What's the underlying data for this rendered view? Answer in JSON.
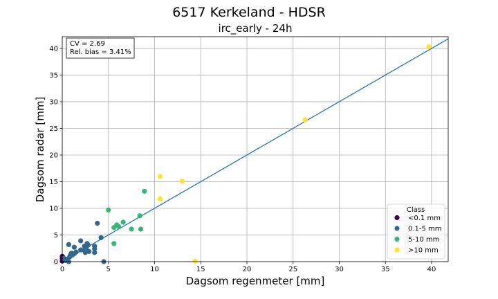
{
  "chart_data": {
    "type": "scatter",
    "suptitle": "6517 Kerkeland - HDSR",
    "title": "irc_early - 24h",
    "xlabel": "Dagsom regenmeter [mm]",
    "ylabel": "Dagsom radar [mm]",
    "xlim": [
      0,
      41.8
    ],
    "ylim": [
      0,
      42.2
    ],
    "xticks": [
      0,
      5,
      10,
      15,
      20,
      25,
      30,
      35,
      40
    ],
    "yticks": [
      0,
      5,
      10,
      15,
      20,
      25,
      30,
      35,
      40
    ],
    "grid": true,
    "annotation": [
      "CV = 2.69",
      "Rel. bias = 3.41%"
    ],
    "line": {
      "x": [
        0,
        41.8
      ],
      "y": [
        0,
        41.8
      ],
      "color": "#1f77b4"
    },
    "legend": {
      "title": "Class",
      "placement": "lower-right",
      "entries": [
        {
          "label": "<0.1 mm",
          "color": "#440154"
        },
        {
          "label": "0.1-5 mm",
          "color": "#31688e"
        },
        {
          "label": "5-10 mm",
          "color": "#35b779"
        },
        {
          "label": ">10 mm",
          "color": "#fde725"
        }
      ]
    },
    "series": [
      {
        "class": "<0.1 mm",
        "color": "#440154",
        "points": [
          [
            0.0,
            1.0
          ],
          [
            0.0,
            0.6
          ],
          [
            0.05,
            0.3
          ],
          [
            0.0,
            0.1
          ],
          [
            0.08,
            0.8
          ]
        ]
      },
      {
        "class": "0.1-5 mm",
        "color": "#31688e",
        "points": [
          [
            0.7,
            3.2
          ],
          [
            1.3,
            2.7
          ],
          [
            2.0,
            3.9
          ],
          [
            2.0,
            2.2
          ],
          [
            2.4,
            2.9
          ],
          [
            2.5,
            1.7
          ],
          [
            2.7,
            3.4
          ],
          [
            2.8,
            3.1
          ],
          [
            2.6,
            2.4
          ],
          [
            3.5,
            2.9
          ],
          [
            3.5,
            2.4
          ],
          [
            3.5,
            1.7
          ],
          [
            3.8,
            7.2
          ],
          [
            4.2,
            4.5
          ],
          [
            4.5,
            0.0
          ],
          [
            1.0,
            1.6
          ],
          [
            1.1,
            1.2
          ],
          [
            1.3,
            1.5
          ],
          [
            0.8,
            0.9
          ],
          [
            0.6,
            0.5
          ],
          [
            0.4,
            0.2
          ],
          [
            0.5,
            0.3
          ],
          [
            0.9,
            1.3
          ],
          [
            0.3,
            0.4
          ],
          [
            0.7,
            0.0
          ],
          [
            2.4,
            2.1
          ],
          [
            2.9,
            1.9
          ],
          [
            1.5,
            1.8
          ],
          [
            0.2,
            0.6
          ]
        ]
      },
      {
        "class": "5-10 mm",
        "color": "#35b779",
        "points": [
          [
            5.0,
            9.7
          ],
          [
            5.6,
            3.4
          ],
          [
            5.6,
            6.4
          ],
          [
            5.9,
            6.9
          ],
          [
            6.1,
            6.6
          ],
          [
            6.6,
            7.4
          ],
          [
            7.5,
            6.1
          ],
          [
            8.4,
            8.6
          ],
          [
            8.5,
            6.1
          ],
          [
            8.9,
            13.2
          ]
        ]
      },
      {
        "class": ">10 mm",
        "color": "#fde725",
        "points": [
          [
            10.6,
            16.0
          ],
          [
            10.6,
            11.8
          ],
          [
            13.0,
            15.1
          ],
          [
            14.4,
            0.1
          ],
          [
            26.3,
            26.6
          ],
          [
            39.7,
            40.3
          ]
        ]
      }
    ]
  }
}
